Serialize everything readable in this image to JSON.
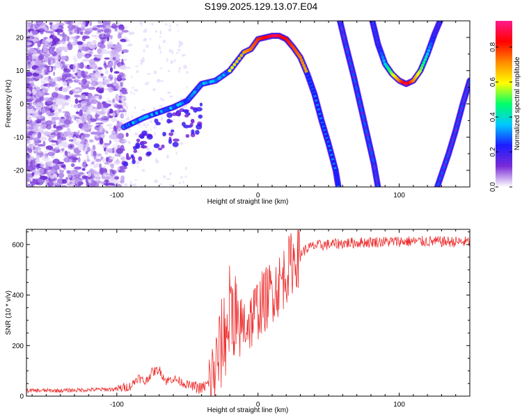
{
  "title": "S199.2025.129.13.07.E04",
  "chart_data": [
    {
      "type": "heatmap",
      "title": "S199.2025.129.13.07.E04",
      "xlabel": "Height of straight line (km)",
      "ylabel": "Frequency (Hz)",
      "xlim": [
        -164,
        150
      ],
      "ylim": [
        -25,
        25
      ],
      "x_ticks": [
        -100,
        0,
        100
      ],
      "y_ticks": [
        -20,
        -10,
        0,
        10,
        20
      ],
      "grid": false,
      "colorbar": {
        "label": "Normalized spectral amplitude",
        "range": [
          0.0,
          0.95
        ],
        "ticks": [
          0.0,
          0.2,
          0.4,
          0.6,
          0.8
        ],
        "colormap": [
          "#ffffff",
          "#7a2bd6",
          "#1c1cff",
          "#00c8ff",
          "#00ff6a",
          "#ffff00",
          "#ff8c00",
          "#ff0000",
          "#ff1a8c"
        ]
      },
      "series": [
        {
          "x": [
            -95,
            -90,
            -80,
            -70,
            -60,
            -50,
            -40,
            -30,
            -25,
            -20,
            -10,
            -5,
            0,
            5,
            10,
            15,
            20,
            25,
            30,
            35,
            40,
            45,
            50,
            55,
            57
          ],
          "y": [
            -7,
            -6,
            -4,
            -2.5,
            -1,
            1,
            6,
            7,
            8.5,
            10,
            15.5,
            16.5,
            19.5,
            20,
            20.5,
            20.5,
            19.5,
            17,
            14,
            9,
            3,
            -5,
            -12,
            -20,
            -25
          ]
        },
        {
          "x": [
            58,
            62,
            68,
            75,
            82,
            85
          ],
          "y": [
            25,
            18,
            8,
            -5,
            -18,
            -25
          ]
        },
        {
          "x": [
            81,
            85,
            90,
            95,
            100,
            105,
            110,
            115,
            120,
            125,
            129
          ],
          "y": [
            25,
            18,
            12,
            9,
            7,
            6,
            7,
            10,
            15,
            21,
            25
          ]
        },
        {
          "x": [
            127,
            135,
            140,
            145,
            150
          ],
          "y": [
            -25,
            -15,
            -8,
            0,
            7
          ]
        }
      ]
    },
    {
      "type": "line",
      "xlabel": "Height of straight line (km)",
      "ylabel": "SNR (10 * v/v)",
      "xlim": [
        -164,
        150
      ],
      "ylim": [
        0,
        660
      ],
      "x_ticks": [
        -100,
        0,
        100
      ],
      "y_ticks": [
        0,
        200,
        400,
        600
      ],
      "grid": false,
      "color": "#ee2a2a",
      "series": [
        {
          "x": [
            -164,
            -140,
            -120,
            -100,
            -90,
            -85,
            -80,
            -75,
            -70,
            -65,
            -60,
            -50,
            -40,
            -35,
            -30,
            -25,
            -20,
            -17,
            -15,
            -10,
            -5,
            0,
            5,
            10,
            15,
            20,
            25,
            30,
            35,
            40,
            50,
            60,
            80,
            100,
            120,
            150
          ],
          "y": [
            22,
            22,
            25,
            28,
            40,
            75,
            55,
            95,
            105,
            60,
            70,
            45,
            30,
            50,
            110,
            220,
            330,
            400,
            250,
            290,
            300,
            350,
            380,
            420,
            440,
            490,
            540,
            565,
            585,
            595,
            600,
            605,
            610,
            612,
            612,
            610
          ]
        }
      ]
    }
  ]
}
